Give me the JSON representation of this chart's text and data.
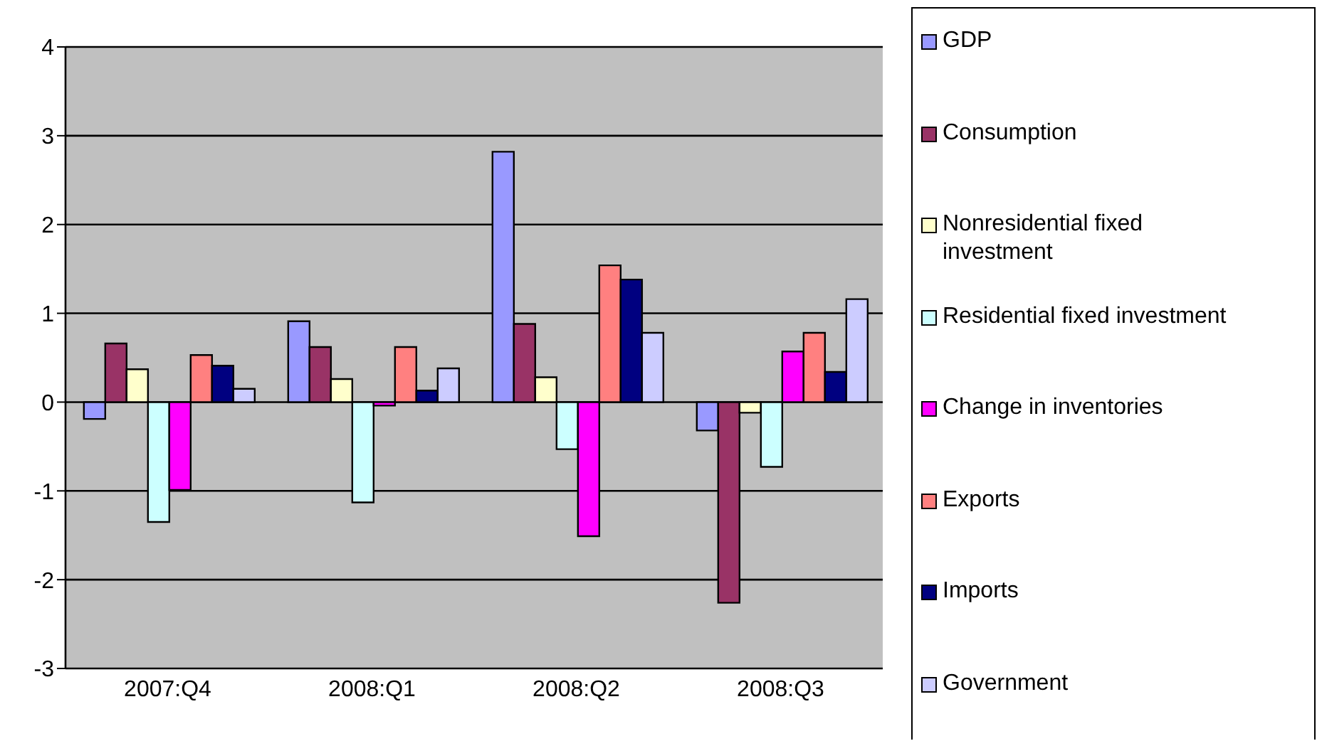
{
  "chart_data": {
    "type": "bar",
    "categories": [
      "2007:Q4",
      "2008:Q1",
      "2008:Q2",
      "2008:Q3"
    ],
    "series": [
      {
        "name": "GDP",
        "color": "#9999ff",
        "values": [
          -0.19,
          0.91,
          2.82,
          -0.32
        ]
      },
      {
        "name": "Consumption",
        "color": "#993366",
        "values": [
          0.66,
          0.62,
          0.88,
          -2.26
        ]
      },
      {
        "name": "Nonresidential fixed investment",
        "color": "#ffffcc",
        "values": [
          0.37,
          0.26,
          0.28,
          -0.12
        ]
      },
      {
        "name": "Residential fixed investment",
        "color": "#ccffff",
        "values": [
          -1.35,
          -1.13,
          -0.53,
          -0.73
        ]
      },
      {
        "name": "Change in inventories",
        "color": "#ff00ff",
        "values": [
          -0.99,
          -0.04,
          -1.51,
          0.57
        ]
      },
      {
        "name": "Exports",
        "color": "#ff8080",
        "values": [
          0.53,
          0.62,
          1.54,
          0.78
        ]
      },
      {
        "name": "Imports",
        "color": "#000080",
        "values": [
          0.41,
          0.13,
          1.38,
          0.34
        ]
      },
      {
        "name": "Government",
        "color": "#ccccff",
        "values": [
          0.15,
          0.38,
          0.78,
          1.16
        ]
      }
    ],
    "ylim": [
      -3,
      4
    ],
    "yticks": [
      -3,
      -2,
      -1,
      0,
      1,
      2,
      3,
      4
    ],
    "grid": "y",
    "legend": "right"
  }
}
